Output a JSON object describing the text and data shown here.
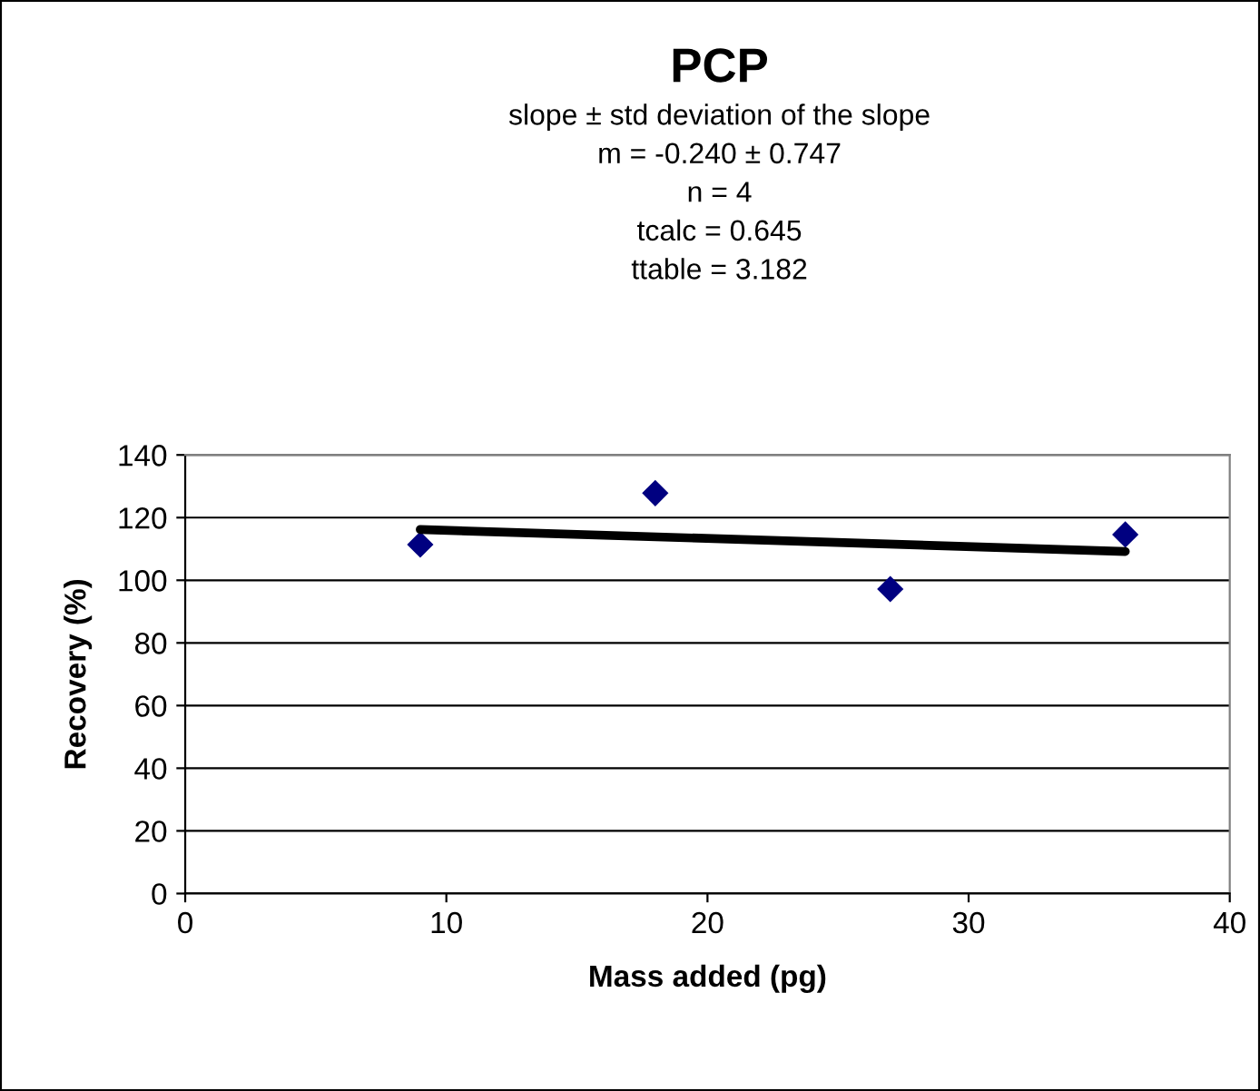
{
  "chart_data": {
    "type": "scatter",
    "title": "PCP",
    "subtitle": "slope ± std deviation of the slope\nm = -0.240 ± 0.747\nn = 4\ntcalc = 0.645\nttable = 3.182",
    "xlabel": "Mass added (pg)",
    "ylabel": "Recovery (%)",
    "series": [
      {
        "x": [
          9,
          18,
          27,
          36
        ],
        "values": [
          111.4,
          127.8,
          97.2,
          114.6
        ],
        "color": "#000080",
        "marker": "diamond"
      },
      {
        "type": "line",
        "x": [
          9,
          36
        ],
        "values": [
          116.2,
          109.2
        ],
        "color": "#000000",
        "line_style": "solid"
      }
    ],
    "xlim": [
      0,
      40
    ],
    "xticks": [
      0,
      10,
      20,
      30,
      40
    ],
    "ylim": [
      0,
      140
    ],
    "yticks": [
      0,
      20,
      40,
      60,
      80,
      100,
      120,
      140
    ],
    "grid": "y",
    "legend": false
  }
}
